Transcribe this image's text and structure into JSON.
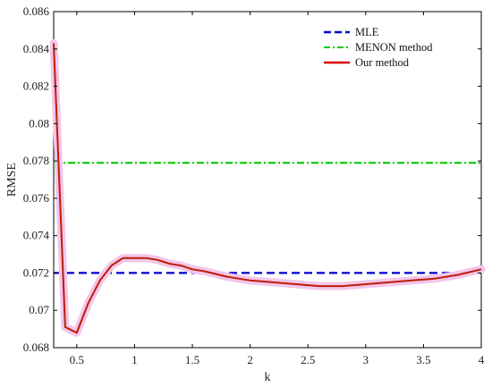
{
  "chart_data": {
    "type": "line",
    "title": "",
    "xlabel": "k",
    "ylabel": "RMSE",
    "xlim": [
      0.3,
      4.0
    ],
    "ylim": [
      0.068,
      0.086
    ],
    "xticks": [
      0.5,
      1,
      1.5,
      2,
      2.5,
      3,
      3.5,
      4
    ],
    "xtick_labels": [
      "0.5",
      "1",
      "1.5",
      "2",
      "2.5",
      "3",
      "3.5",
      "4"
    ],
    "yticks": [
      0.068,
      0.07,
      0.072,
      0.074,
      0.076,
      0.078,
      0.08,
      0.082,
      0.084,
      0.086
    ],
    "ytick_labels": [
      "0.068",
      "0.07",
      "0.072",
      "0.074",
      "0.076",
      "0.078",
      "0.08",
      "0.082",
      "0.084",
      "0.086"
    ],
    "grid": false,
    "legend_position": "top-right",
    "series": [
      {
        "name": "MLE",
        "color": "#0000cc",
        "style": "dashed",
        "x": [
          0.3,
          4.0
        ],
        "y": [
          0.072,
          0.072
        ]
      },
      {
        "name": "MENON method",
        "color": "#00cc00",
        "style": "dashdot",
        "x": [
          0.3,
          4.0
        ],
        "y": [
          0.0779,
          0.0779
        ]
      },
      {
        "name": "Our method",
        "color": "#dd0000",
        "style": "solid",
        "x": [
          0.3,
          0.4,
          0.5,
          0.6,
          0.7,
          0.8,
          0.9,
          1.0,
          1.1,
          1.2,
          1.3,
          1.4,
          1.5,
          1.6,
          1.8,
          2.0,
          2.2,
          2.4,
          2.6,
          2.8,
          3.0,
          3.2,
          3.4,
          3.6,
          3.8,
          4.0
        ],
        "y": [
          0.0843,
          0.0691,
          0.0688,
          0.0704,
          0.0716,
          0.0724,
          0.0728,
          0.0728,
          0.0728,
          0.0727,
          0.0725,
          0.0724,
          0.0722,
          0.0721,
          0.0718,
          0.0716,
          0.0715,
          0.0714,
          0.0713,
          0.0713,
          0.0714,
          0.0715,
          0.0716,
          0.0717,
          0.0719,
          0.0722
        ]
      }
    ]
  }
}
